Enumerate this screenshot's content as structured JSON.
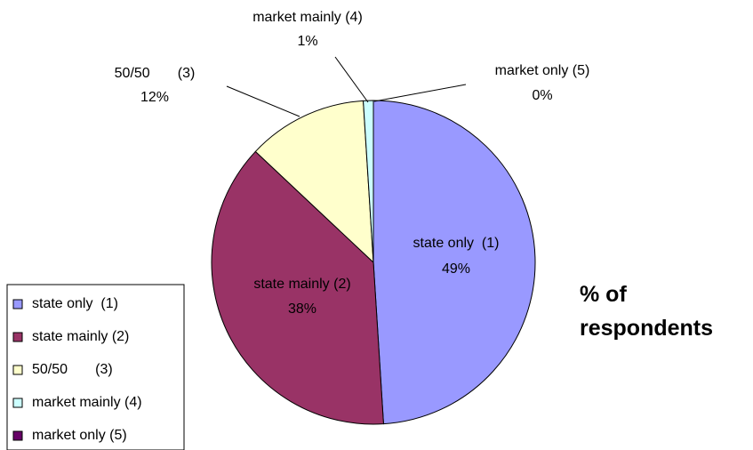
{
  "chart_data": {
    "type": "pie",
    "title": "% of respondents",
    "categories": [
      "state only  (1)",
      "state mainly (2)",
      "50/50       (3)",
      "market mainly (4)",
      "market only (5)"
    ],
    "values": [
      49,
      38,
      12,
      1,
      0
    ],
    "value_labels": [
      "49%",
      "38%",
      "12%",
      "1%",
      "0%"
    ],
    "colors": [
      "#9999ff",
      "#993366",
      "#ffffcc",
      "#ccffff",
      "#660066"
    ],
    "legend": "bottom-left"
  }
}
